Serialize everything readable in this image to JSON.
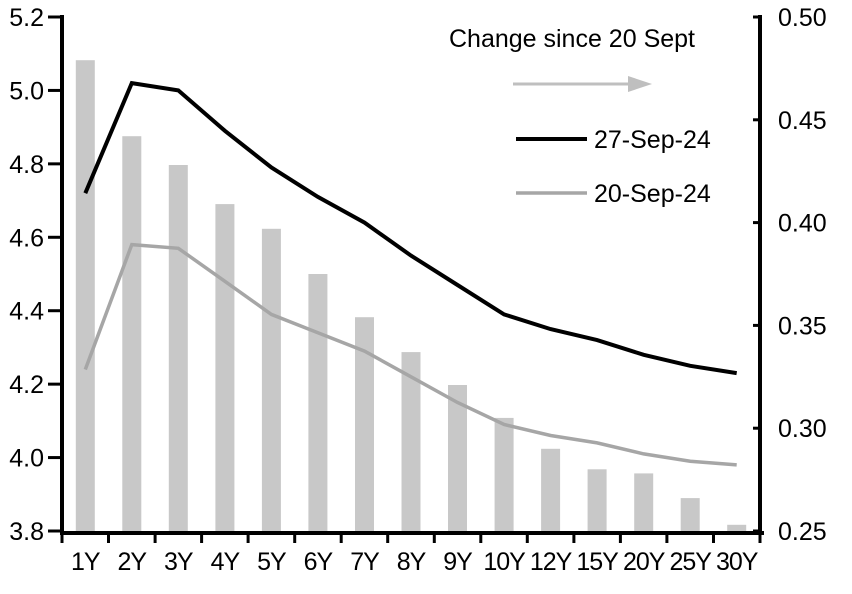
{
  "chart_data": {
    "type": "combo-bar-line",
    "categories": [
      "1Y",
      "2Y",
      "3Y",
      "4Y",
      "5Y",
      "6Y",
      "7Y",
      "8Y",
      "9Y",
      "10Y",
      "12Y",
      "15Y",
      "20Y",
      "25Y",
      "30Y"
    ],
    "bar_series": {
      "name": "Change since 20 Sept",
      "axis": "right",
      "color": "#C8C8C8",
      "values": [
        0.479,
        0.442,
        0.428,
        0.409,
        0.397,
        0.375,
        0.354,
        0.337,
        0.321,
        0.305,
        0.29,
        0.28,
        0.278,
        0.266,
        0.253
      ]
    },
    "series": [
      {
        "name": "27-Sep-24",
        "axis": "left",
        "color": "#000000",
        "stroke_width": 4,
        "values": [
          4.72,
          5.02,
          5.0,
          4.89,
          4.79,
          4.71,
          4.64,
          4.55,
          4.47,
          4.39,
          4.35,
          4.32,
          4.28,
          4.25,
          4.23
        ]
      },
      {
        "name": "20-Sep-24",
        "axis": "left",
        "color": "#A6A6A6",
        "stroke_width": 3.5,
        "values": [
          4.24,
          4.58,
          4.57,
          4.48,
          4.39,
          4.34,
          4.29,
          4.22,
          4.15,
          4.09,
          4.06,
          4.04,
          4.01,
          3.99,
          3.98
        ]
      }
    ],
    "left_axis": {
      "min": 3.8,
      "max": 5.2,
      "tick_values": [
        5.2,
        5.0,
        4.8,
        4.6,
        4.4,
        4.2,
        4.0,
        3.8
      ],
      "tick_labels": [
        "5.2",
        "5.0",
        "4.8",
        "4.6",
        "4.4",
        "4.2",
        "4.0",
        "3.8"
      ]
    },
    "right_axis": {
      "min": 0.25,
      "max": 0.5,
      "tick_values": [
        0.5,
        0.45,
        0.4,
        0.35,
        0.3,
        0.25
      ],
      "tick_labels": [
        "0.50",
        "0.45",
        "0.40",
        "0.35",
        "0.30",
        "0.25"
      ]
    },
    "grid": false,
    "legend_position": "top-center-inside"
  },
  "legend": {
    "title": "Change since 20 Sept",
    "arrow_icon": "right-arrow",
    "arrow_color": "#BFBFBF",
    "entries": [
      {
        "label": "27-Sep-24",
        "color": "#000000"
      },
      {
        "label": "20-Sep-24",
        "color": "#A6A6A6"
      }
    ]
  },
  "colors": {
    "axis": "#000000",
    "background": "#FFFFFF"
  }
}
